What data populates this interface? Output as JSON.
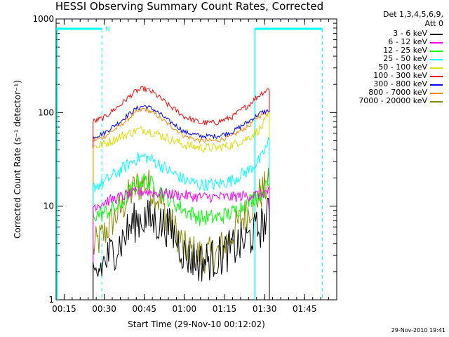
{
  "chart_data": {
    "type": "line",
    "title": "HESSI Observing Summary Count Rates, Corrected",
    "xlabel": "Start Time (29-Nov-10 00:12:02)",
    "ylabel": "Corrected Count Rate (s⁻¹ detector⁻¹)",
    "yscale": "log",
    "ylim": [
      1,
      1000
    ],
    "xlim_minutes": [
      0.0,
      1.75
    ],
    "x_unit": "hours after 00:12:02",
    "x_ticks": [
      {
        "label": "00:15",
        "value": 0.05
      },
      {
        "label": "00:30",
        "value": 0.3
      },
      {
        "label": "00:45",
        "value": 0.55
      },
      {
        "label": "01:00",
        "value": 0.8
      },
      {
        "label": "01:15",
        "value": 1.05
      },
      {
        "label": "01:30",
        "value": 1.3
      },
      {
        "label": "01:45",
        "value": 1.55
      }
    ],
    "y_ticks": [
      {
        "label": "1",
        "value": 1
      },
      {
        "label": "10",
        "value": 10
      },
      {
        "label": "100",
        "value": 100
      },
      {
        "label": "1000",
        "value": 1000
      }
    ],
    "legend_header": [
      "Det 1,3,4,5,6,9,",
      "Att 0"
    ],
    "legend_position": "right",
    "grid": false,
    "x_sample": [
      0.23,
      0.3,
      0.4,
      0.5,
      0.55,
      0.6,
      0.7,
      0.8,
      0.9,
      1.0,
      1.1,
      1.2,
      1.28,
      1.33
    ],
    "series": [
      {
        "name": "3 - 6 keV",
        "color": "#000000",
        "values": [
          1.5,
          2.5,
          4,
          7,
          7.5,
          7,
          6,
          3,
          2.5,
          2.8,
          3.5,
          4.5,
          6,
          8
        ]
      },
      {
        "name": "6 - 12 keV",
        "color": "#ff00ff",
        "values": [
          10,
          11,
          12.5,
          14,
          14.5,
          14,
          13.5,
          13,
          12.5,
          12.5,
          12.5,
          13,
          13.5,
          14.5
        ]
      },
      {
        "name": "12 - 25 keV",
        "color": "#00ff00",
        "values": [
          8,
          8.5,
          10,
          17,
          19,
          17,
          12,
          9,
          7.5,
          7.5,
          8.5,
          11,
          14,
          17
        ]
      },
      {
        "name": "25 - 50 keV",
        "color": "#00ffff",
        "values": [
          16,
          18,
          24,
          32,
          34,
          31,
          24,
          19,
          17,
          17,
          19,
          24,
          32,
          50
        ]
      },
      {
        "name": "50 - 100 keV",
        "color": "#dddd00",
        "values": [
          43,
          46,
          55,
          64,
          66,
          62,
          53,
          45,
          42,
          42,
          45,
          54,
          68,
          95
        ]
      },
      {
        "name": "100 - 300 keV",
        "color": "#ff0000",
        "values": [
          80,
          88,
          120,
          170,
          180,
          165,
          120,
          90,
          78,
          78,
          90,
          120,
          160,
          180
        ]
      },
      {
        "name": "300 - 800 keV",
        "color": "#0000ff",
        "values": [
          55,
          60,
          80,
          110,
          118,
          110,
          82,
          62,
          56,
          56,
          62,
          80,
          100,
          105
        ]
      },
      {
        "name": "800 - 7000 keV",
        "color": "#ff8800",
        "values": [
          50,
          55,
          72,
          100,
          110,
          100,
          75,
          56,
          50,
          50,
          56,
          72,
          95,
          100
        ]
      },
      {
        "name": "7000 - 20000 keV",
        "color": "#888800",
        "values": [
          3.5,
          5,
          9,
          16,
          18,
          15,
          7,
          3.5,
          3,
          3,
          5,
          9,
          14,
          17
        ]
      }
    ],
    "annotations": [
      {
        "text": "N",
        "color": "#00ffff"
      }
    ],
    "timestamp": "29-Nov-2010 19:41"
  }
}
